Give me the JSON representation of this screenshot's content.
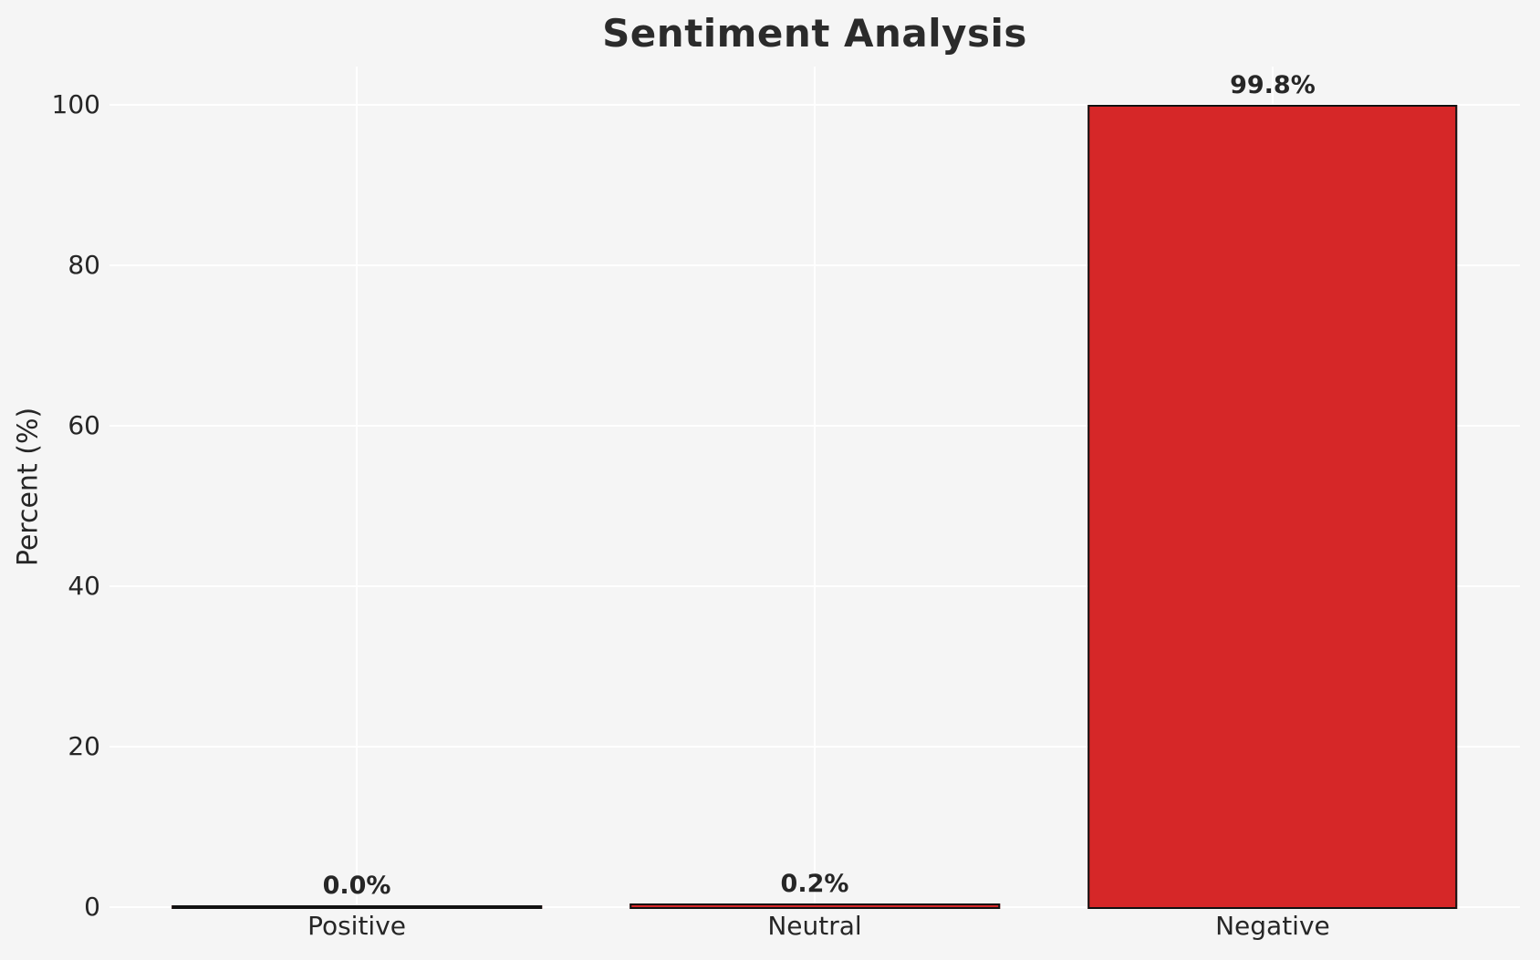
{
  "chart_data": {
    "type": "bar",
    "title": "Sentiment Analysis",
    "xlabel": "",
    "ylabel": "Percent (%)",
    "categories": [
      "Positive",
      "Neutral",
      "Negative"
    ],
    "values": [
      0.0,
      0.2,
      99.8
    ],
    "value_labels": [
      "0.0%",
      "0.2%",
      "99.8%"
    ],
    "yticks": [
      0,
      20,
      40,
      60,
      80,
      100
    ],
    "ylim": [
      0,
      104.8
    ],
    "xlim": [
      -0.54,
      2.54
    ],
    "bar_width": 0.8,
    "grid": true,
    "legend": false,
    "bar_color": "#d62728",
    "bar_edge_color": "#111111",
    "background_color": "#f5f5f5",
    "gridline_color": "#ffffff",
    "text_color": "#262626"
  }
}
